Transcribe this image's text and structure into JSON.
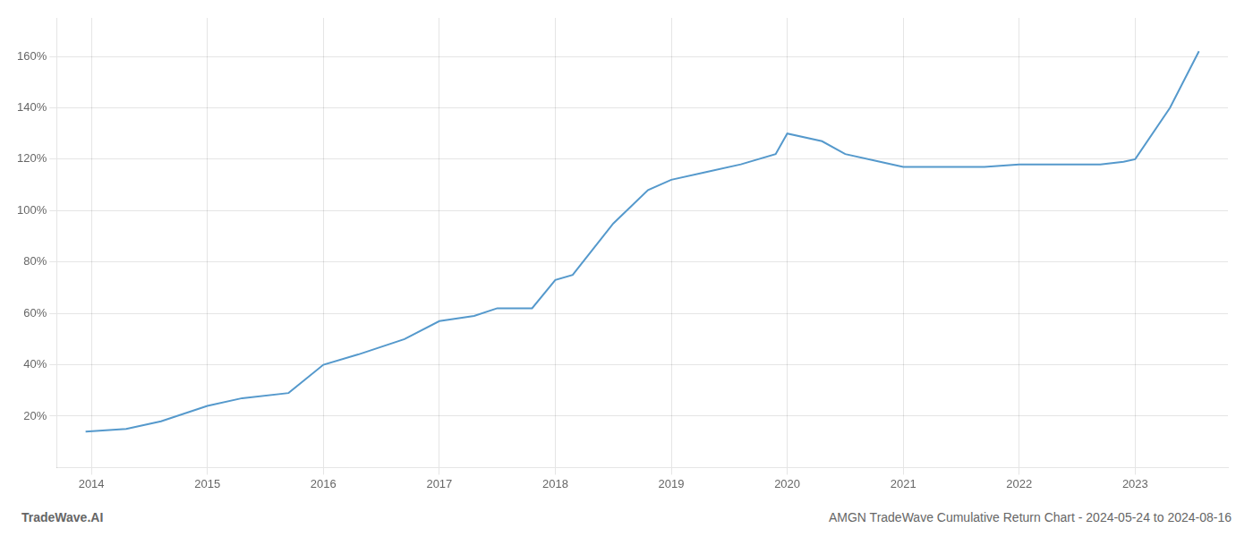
{
  "chart_data": {
    "type": "line",
    "x": [
      2013.95,
      2014.3,
      2014.6,
      2015.0,
      2015.3,
      2015.7,
      2016.0,
      2016.3,
      2016.7,
      2017.0,
      2017.3,
      2017.5,
      2017.8,
      2018.0,
      2018.15,
      2018.5,
      2018.8,
      2019.0,
      2019.3,
      2019.6,
      2019.9,
      2020.0,
      2020.3,
      2020.5,
      2020.8,
      2021.0,
      2021.3,
      2021.7,
      2022.0,
      2022.3,
      2022.7,
      2022.9,
      2023.0,
      2023.3,
      2023.55
    ],
    "values": [
      14,
      15,
      18,
      24,
      27,
      29,
      40,
      44,
      50,
      57,
      59,
      62,
      62,
      73,
      75,
      95,
      108,
      112,
      115,
      118,
      122,
      130,
      127,
      122,
      119,
      117,
      117,
      117,
      118,
      118,
      118,
      119,
      120,
      140,
      162
    ],
    "color": "#5599cc",
    "xlim": [
      2013.7,
      2023.8
    ],
    "xticks": [
      2014,
      2015,
      2016,
      2017,
      2018,
      2019,
      2020,
      2021,
      2022,
      2023
    ],
    "ylim": [
      0,
      175
    ],
    "yticks": [
      {
        "value": 20,
        "label": "20%"
      },
      {
        "value": 40,
        "label": "40%"
      },
      {
        "value": 60,
        "label": "60%"
      },
      {
        "value": 80,
        "label": "80%"
      },
      {
        "value": 100,
        "label": "100%"
      },
      {
        "value": 120,
        "label": "120%"
      },
      {
        "value": 140,
        "label": "140%"
      },
      {
        "value": 160,
        "label": "160%"
      }
    ],
    "grid": true,
    "annotations": [
      "TradeWave.AI",
      "AMGN TradeWave Cumulative Return Chart - 2024-05-24 to 2024-08-16"
    ]
  }
}
